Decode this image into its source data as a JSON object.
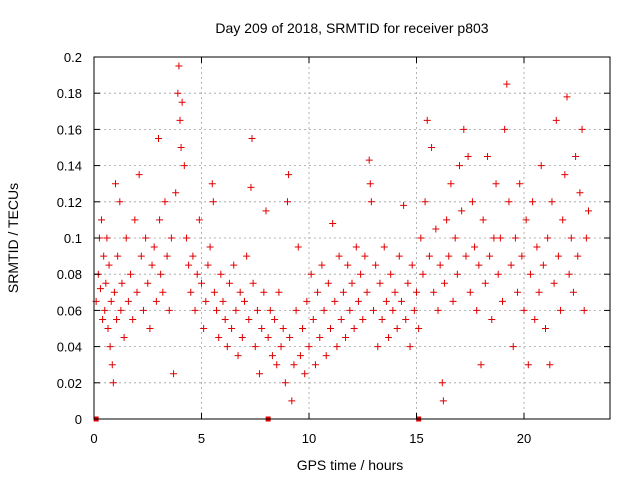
{
  "chart_data": {
    "type": "scatter",
    "title": "Day 209 of 2018, SRMTID for receiver p803",
    "xlabel": "GPS time / hours",
    "ylabel": "SRMTID / TECUs",
    "xlim": [
      0,
      24
    ],
    "ylim": [
      0,
      0.2
    ],
    "xticks": [
      0,
      5,
      10,
      15,
      20
    ],
    "xtick_labels": [
      "0",
      "5",
      "10",
      "15",
      "20"
    ],
    "yticks": [
      0,
      0.02,
      0.04,
      0.06,
      0.08,
      0.1,
      0.12,
      0.14,
      0.16,
      0.18,
      0.2
    ],
    "ytick_labels": [
      "0",
      "0.02",
      "0.04",
      "0.06",
      "0.08",
      "0.1",
      "0.12",
      "0.14",
      "0.16",
      "0.18",
      "0.2"
    ],
    "grid": true,
    "marker": "+",
    "color": "#e00000",
    "series": [
      {
        "name": "SRMTID",
        "points": [
          [
            0.1,
            0.065
          ],
          [
            0.2,
            0.08
          ],
          [
            0.25,
            0.1
          ],
          [
            0.3,
            0.072
          ],
          [
            0.35,
            0.11
          ],
          [
            0.4,
            0.055
          ],
          [
            0.45,
            0.09
          ],
          [
            0.5,
            0.06
          ],
          [
            0.55,
            0.075
          ],
          [
            0.6,
            0.1
          ],
          [
            0.65,
            0.05
          ],
          [
            0.7,
            0.085
          ],
          [
            0.75,
            0.04
          ],
          [
            0.8,
            0.065
          ],
          [
            0.85,
            0.03
          ],
          [
            0.9,
            0.02
          ],
          [
            0.95,
            0.07
          ],
          [
            1.0,
            0.13
          ],
          [
            1.05,
            0.055
          ],
          [
            1.1,
            0.09
          ],
          [
            1.2,
            0.12
          ],
          [
            1.25,
            0.06
          ],
          [
            1.3,
            0.075
          ],
          [
            1.4,
            0.045
          ],
          [
            1.5,
            0.1
          ],
          [
            1.6,
            0.065
          ],
          [
            1.7,
            0.08
          ],
          [
            1.8,
            0.055
          ],
          [
            1.9,
            0.11
          ],
          [
            2.0,
            0.07
          ],
          [
            2.1,
            0.135
          ],
          [
            2.2,
            0.09
          ],
          [
            2.3,
            0.06
          ],
          [
            2.4,
            0.1
          ],
          [
            2.5,
            0.075
          ],
          [
            2.6,
            0.05
          ],
          [
            2.7,
            0.085
          ],
          [
            2.8,
            0.095
          ],
          [
            2.9,
            0.065
          ],
          [
            3.0,
            0.155
          ],
          [
            3.05,
            0.11
          ],
          [
            3.1,
            0.08
          ],
          [
            3.2,
            0.07
          ],
          [
            3.3,
            0.12
          ],
          [
            3.4,
            0.09
          ],
          [
            3.5,
            0.06
          ],
          [
            3.6,
            0.1
          ],
          [
            3.7,
            0.025
          ],
          [
            3.8,
            0.125
          ],
          [
            3.9,
            0.18
          ],
          [
            3.95,
            0.195
          ],
          [
            4.0,
            0.165
          ],
          [
            4.05,
            0.15
          ],
          [
            4.1,
            0.175
          ],
          [
            4.2,
            0.14
          ],
          [
            4.3,
            0.1
          ],
          [
            4.4,
            0.085
          ],
          [
            4.5,
            0.07
          ],
          [
            4.6,
            0.09
          ],
          [
            4.7,
            0.06
          ],
          [
            4.8,
            0.08
          ],
          [
            4.9,
            0.11
          ],
          [
            5.0,
            0.075
          ],
          [
            5.1,
            0.05
          ],
          [
            5.2,
            0.065
          ],
          [
            5.3,
            0.085
          ],
          [
            5.4,
            0.095
          ],
          [
            5.5,
            0.13
          ],
          [
            5.55,
            0.12
          ],
          [
            5.6,
            0.07
          ],
          [
            5.7,
            0.06
          ],
          [
            5.8,
            0.045
          ],
          [
            5.9,
            0.08
          ],
          [
            6.0,
            0.065
          ],
          [
            6.1,
            0.055
          ],
          [
            6.2,
            0.04
          ],
          [
            6.3,
            0.075
          ],
          [
            6.4,
            0.05
          ],
          [
            6.5,
            0.085
          ],
          [
            6.6,
            0.06
          ],
          [
            6.7,
            0.035
          ],
          [
            6.8,
            0.07
          ],
          [
            6.9,
            0.045
          ],
          [
            7.0,
            0.065
          ],
          [
            7.1,
            0.09
          ],
          [
            7.2,
            0.055
          ],
          [
            7.3,
            0.128
          ],
          [
            7.35,
            0.155
          ],
          [
            7.4,
            0.075
          ],
          [
            7.5,
            0.04
          ],
          [
            7.6,
            0.06
          ],
          [
            7.7,
            0.025
          ],
          [
            7.8,
            0.05
          ],
          [
            7.9,
            0.07
          ],
          [
            8.0,
            0.115
          ],
          [
            8.1,
            0.045
          ],
          [
            8.2,
            0.06
          ],
          [
            8.3,
            0.035
          ],
          [
            8.4,
            0.055
          ],
          [
            8.5,
            0.03
          ],
          [
            8.6,
            0.07
          ],
          [
            8.7,
            0.04
          ],
          [
            8.8,
            0.05
          ],
          [
            8.9,
            0.02
          ],
          [
            9.0,
            0.12
          ],
          [
            9.05,
            0.135
          ],
          [
            9.1,
            0.045
          ],
          [
            9.2,
            0.01
          ],
          [
            9.3,
            0.03
          ],
          [
            9.4,
            0.06
          ],
          [
            9.5,
            0.095
          ],
          [
            9.6,
            0.035
          ],
          [
            9.7,
            0.05
          ],
          [
            9.8,
            0.025
          ],
          [
            9.9,
            0.065
          ],
          [
            10.0,
            0.04
          ],
          [
            10.1,
            0.08
          ],
          [
            10.2,
            0.055
          ],
          [
            10.3,
            0.03
          ],
          [
            10.4,
            0.07
          ],
          [
            10.5,
            0.045
          ],
          [
            10.6,
            0.085
          ],
          [
            10.7,
            0.06
          ],
          [
            10.8,
            0.035
          ],
          [
            10.9,
            0.075
          ],
          [
            11.0,
            0.05
          ],
          [
            11.1,
            0.108
          ],
          [
            11.2,
            0.065
          ],
          [
            11.3,
            0.04
          ],
          [
            11.4,
            0.09
          ],
          [
            11.5,
            0.055
          ],
          [
            11.6,
            0.07
          ],
          [
            11.7,
            0.045
          ],
          [
            11.8,
            0.085
          ],
          [
            11.9,
            0.06
          ],
          [
            12.0,
            0.075
          ],
          [
            12.1,
            0.05
          ],
          [
            12.2,
            0.095
          ],
          [
            12.3,
            0.065
          ],
          [
            12.4,
            0.08
          ],
          [
            12.5,
            0.055
          ],
          [
            12.6,
            0.09
          ],
          [
            12.7,
            0.07
          ],
          [
            12.8,
            0.143
          ],
          [
            12.85,
            0.13
          ],
          [
            12.9,
            0.12
          ],
          [
            13.0,
            0.06
          ],
          [
            13.1,
            0.085
          ],
          [
            13.2,
            0.04
          ],
          [
            13.3,
            0.075
          ],
          [
            13.4,
            0.055
          ],
          [
            13.5,
            0.095
          ],
          [
            13.6,
            0.065
          ],
          [
            13.7,
            0.045
          ],
          [
            13.8,
            0.08
          ],
          [
            13.9,
            0.06
          ],
          [
            14.0,
            0.07
          ],
          [
            14.1,
            0.05
          ],
          [
            14.2,
            0.09
          ],
          [
            14.3,
            0.065
          ],
          [
            14.4,
            0.118
          ],
          [
            14.5,
            0.055
          ],
          [
            14.6,
            0.075
          ],
          [
            14.7,
            0.04
          ],
          [
            14.8,
            0.085
          ],
          [
            14.9,
            0.06
          ],
          [
            15.0,
            0.07
          ],
          [
            15.1,
            0.05
          ],
          [
            15.2,
            0.1
          ],
          [
            15.3,
            0.08
          ],
          [
            15.4,
            0.12
          ],
          [
            15.5,
            0.165
          ],
          [
            15.6,
            0.09
          ],
          [
            15.7,
            0.15
          ],
          [
            15.8,
            0.07
          ],
          [
            15.9,
            0.105
          ],
          [
            16.0,
            0.06
          ],
          [
            16.1,
            0.085
          ],
          [
            16.2,
            0.02
          ],
          [
            16.25,
            0.01
          ],
          [
            16.3,
            0.075
          ],
          [
            16.4,
            0.11
          ],
          [
            16.5,
            0.09
          ],
          [
            16.6,
            0.13
          ],
          [
            16.7,
            0.065
          ],
          [
            16.8,
            0.1
          ],
          [
            16.9,
            0.08
          ],
          [
            17.0,
            0.14
          ],
          [
            17.1,
            0.115
          ],
          [
            17.2,
            0.16
          ],
          [
            17.3,
            0.09
          ],
          [
            17.4,
            0.145
          ],
          [
            17.5,
            0.07
          ],
          [
            17.6,
            0.12
          ],
          [
            17.7,
            0.095
          ],
          [
            17.8,
            0.06
          ],
          [
            17.9,
            0.085
          ],
          [
            18.0,
            0.03
          ],
          [
            18.1,
            0.11
          ],
          [
            18.2,
            0.075
          ],
          [
            18.3,
            0.145
          ],
          [
            18.4,
            0.09
          ],
          [
            18.5,
            0.055
          ],
          [
            18.6,
            0.1
          ],
          [
            18.7,
            0.13
          ],
          [
            18.8,
            0.08
          ],
          [
            18.9,
            0.1
          ],
          [
            19.0,
            0.065
          ],
          [
            19.1,
            0.16
          ],
          [
            19.2,
            0.185
          ],
          [
            19.3,
            0.12
          ],
          [
            19.4,
            0.085
          ],
          [
            19.5,
            0.04
          ],
          [
            19.6,
            0.1
          ],
          [
            19.7,
            0.07
          ],
          [
            19.8,
            0.13
          ],
          [
            19.9,
            0.09
          ],
          [
            20.0,
            0.06
          ],
          [
            20.1,
            0.11
          ],
          [
            20.2,
            0.03
          ],
          [
            20.3,
            0.08
          ],
          [
            20.4,
            0.12
          ],
          [
            20.5,
            0.055
          ],
          [
            20.6,
            0.095
          ],
          [
            20.7,
            0.07
          ],
          [
            20.8,
            0.14
          ],
          [
            20.9,
            0.085
          ],
          [
            21.0,
            0.05
          ],
          [
            21.1,
            0.1
          ],
          [
            21.2,
            0.03
          ],
          [
            21.3,
            0.12
          ],
          [
            21.4,
            0.075
          ],
          [
            21.5,
            0.165
          ],
          [
            21.6,
            0.09
          ],
          [
            21.7,
            0.06
          ],
          [
            21.8,
            0.11
          ],
          [
            21.9,
            0.135
          ],
          [
            22.0,
            0.178
          ],
          [
            22.1,
            0.08
          ],
          [
            22.2,
            0.1
          ],
          [
            22.3,
            0.07
          ],
          [
            22.4,
            0.145
          ],
          [
            22.5,
            0.09
          ],
          [
            22.6,
            0.125
          ],
          [
            22.7,
            0.16
          ],
          [
            22.8,
            0.06
          ],
          [
            22.9,
            0.1
          ],
          [
            23.0,
            0.115
          ]
        ]
      }
    ],
    "markers_on_axis": [
      0.1,
      8.1,
      15.1
    ]
  }
}
